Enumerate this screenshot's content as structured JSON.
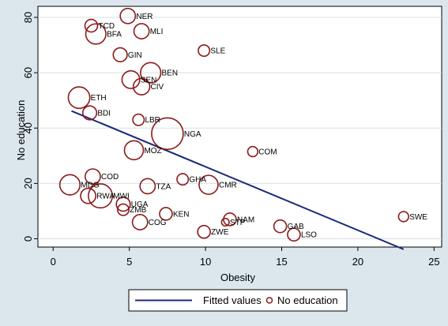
{
  "chart_data": {
    "type": "scatter",
    "xlabel": "Obesity",
    "ylabel": "No education",
    "xlim": [
      -1,
      25.5
    ],
    "ylim": [
      -3,
      84
    ],
    "xticks": [
      0,
      5,
      10,
      15,
      20,
      25
    ],
    "yticks": [
      0,
      20,
      40,
      60,
      80
    ],
    "grid": "horizontal",
    "legend_position": "bottom",
    "legend": {
      "fitted": "Fitted values",
      "points": "No education"
    },
    "colors": {
      "points": "#8b1a1a",
      "fitted": "#1a2a7a",
      "background": "#dbe7ec",
      "plot_background": "#ffffff"
    },
    "fitted_line": {
      "x": [
        1.2,
        23.0
      ],
      "y": [
        46.2,
        -3.8
      ]
    },
    "points": [
      {
        "label": "TCD",
        "x": 2.5,
        "y": 77.0,
        "size": 1.0
      },
      {
        "label": "NER",
        "x": 4.9,
        "y": 80.5,
        "size": 1.2
      },
      {
        "label": "BFA",
        "x": 2.8,
        "y": 74.0,
        "size": 1.6
      },
      {
        "label": "MLI",
        "x": 5.8,
        "y": 75.0,
        "size": 1.2
      },
      {
        "label": "GIN",
        "x": 4.4,
        "y": 66.5,
        "size": 1.1
      },
      {
        "label": "SLE",
        "x": 9.9,
        "y": 68.0,
        "size": 0.9
      },
      {
        "label": "SEN",
        "x": 5.1,
        "y": 57.5,
        "size": 1.4
      },
      {
        "label": "BEN",
        "x": 6.4,
        "y": 60.0,
        "size": 1.6
      },
      {
        "label": "CIV",
        "x": 5.8,
        "y": 55.0,
        "size": 1.3
      },
      {
        "label": "ETH",
        "x": 1.7,
        "y": 51.0,
        "size": 1.7
      },
      {
        "label": "BDI",
        "x": 2.4,
        "y": 45.5,
        "size": 1.1
      },
      {
        "label": "LBR",
        "x": 5.6,
        "y": 43.0,
        "size": 0.9
      },
      {
        "label": "NGA",
        "x": 7.5,
        "y": 38.0,
        "size": 2.5
      },
      {
        "label": "MOZ",
        "x": 5.3,
        "y": 32.0,
        "size": 1.5
      },
      {
        "label": "COM",
        "x": 13.1,
        "y": 31.5,
        "size": 0.8
      },
      {
        "label": "MDG",
        "x": 1.1,
        "y": 19.5,
        "size": 1.6
      },
      {
        "label": "COD",
        "x": 2.6,
        "y": 22.5,
        "size": 1.2
      },
      {
        "label": "GHA",
        "x": 8.5,
        "y": 21.5,
        "size": 0.9
      },
      {
        "label": "TZA",
        "x": 6.2,
        "y": 19.0,
        "size": 1.2
      },
      {
        "label": "CMR",
        "x": 10.2,
        "y": 19.5,
        "size": 1.5
      },
      {
        "label": "RWA",
        "x": 2.3,
        "y": 15.5,
        "size": 1.2
      },
      {
        "label": "MWI",
        "x": 3.1,
        "y": 15.5,
        "size": 1.9
      },
      {
        "label": "UGA",
        "x": 4.6,
        "y": 12.5,
        "size": 1.1
      },
      {
        "label": "ZMB",
        "x": 4.6,
        "y": 10.5,
        "size": 0.9
      },
      {
        "label": "COG",
        "x": 5.7,
        "y": 6.0,
        "size": 1.2
      },
      {
        "label": "KEN",
        "x": 7.4,
        "y": 9.0,
        "size": 1.0
      },
      {
        "label": "STP",
        "x": 11.3,
        "y": 6.0,
        "size": 0.6
      },
      {
        "label": "NAM",
        "x": 11.6,
        "y": 7.0,
        "size": 1.0
      },
      {
        "label": "ZWE",
        "x": 9.9,
        "y": 2.5,
        "size": 1.0
      },
      {
        "label": "GAB",
        "x": 14.9,
        "y": 4.5,
        "size": 1.0
      },
      {
        "label": "LSO",
        "x": 15.8,
        "y": 1.5,
        "size": 1.0
      },
      {
        "label": "SWE",
        "x": 23.0,
        "y": 8.0,
        "size": 0.8
      }
    ]
  }
}
